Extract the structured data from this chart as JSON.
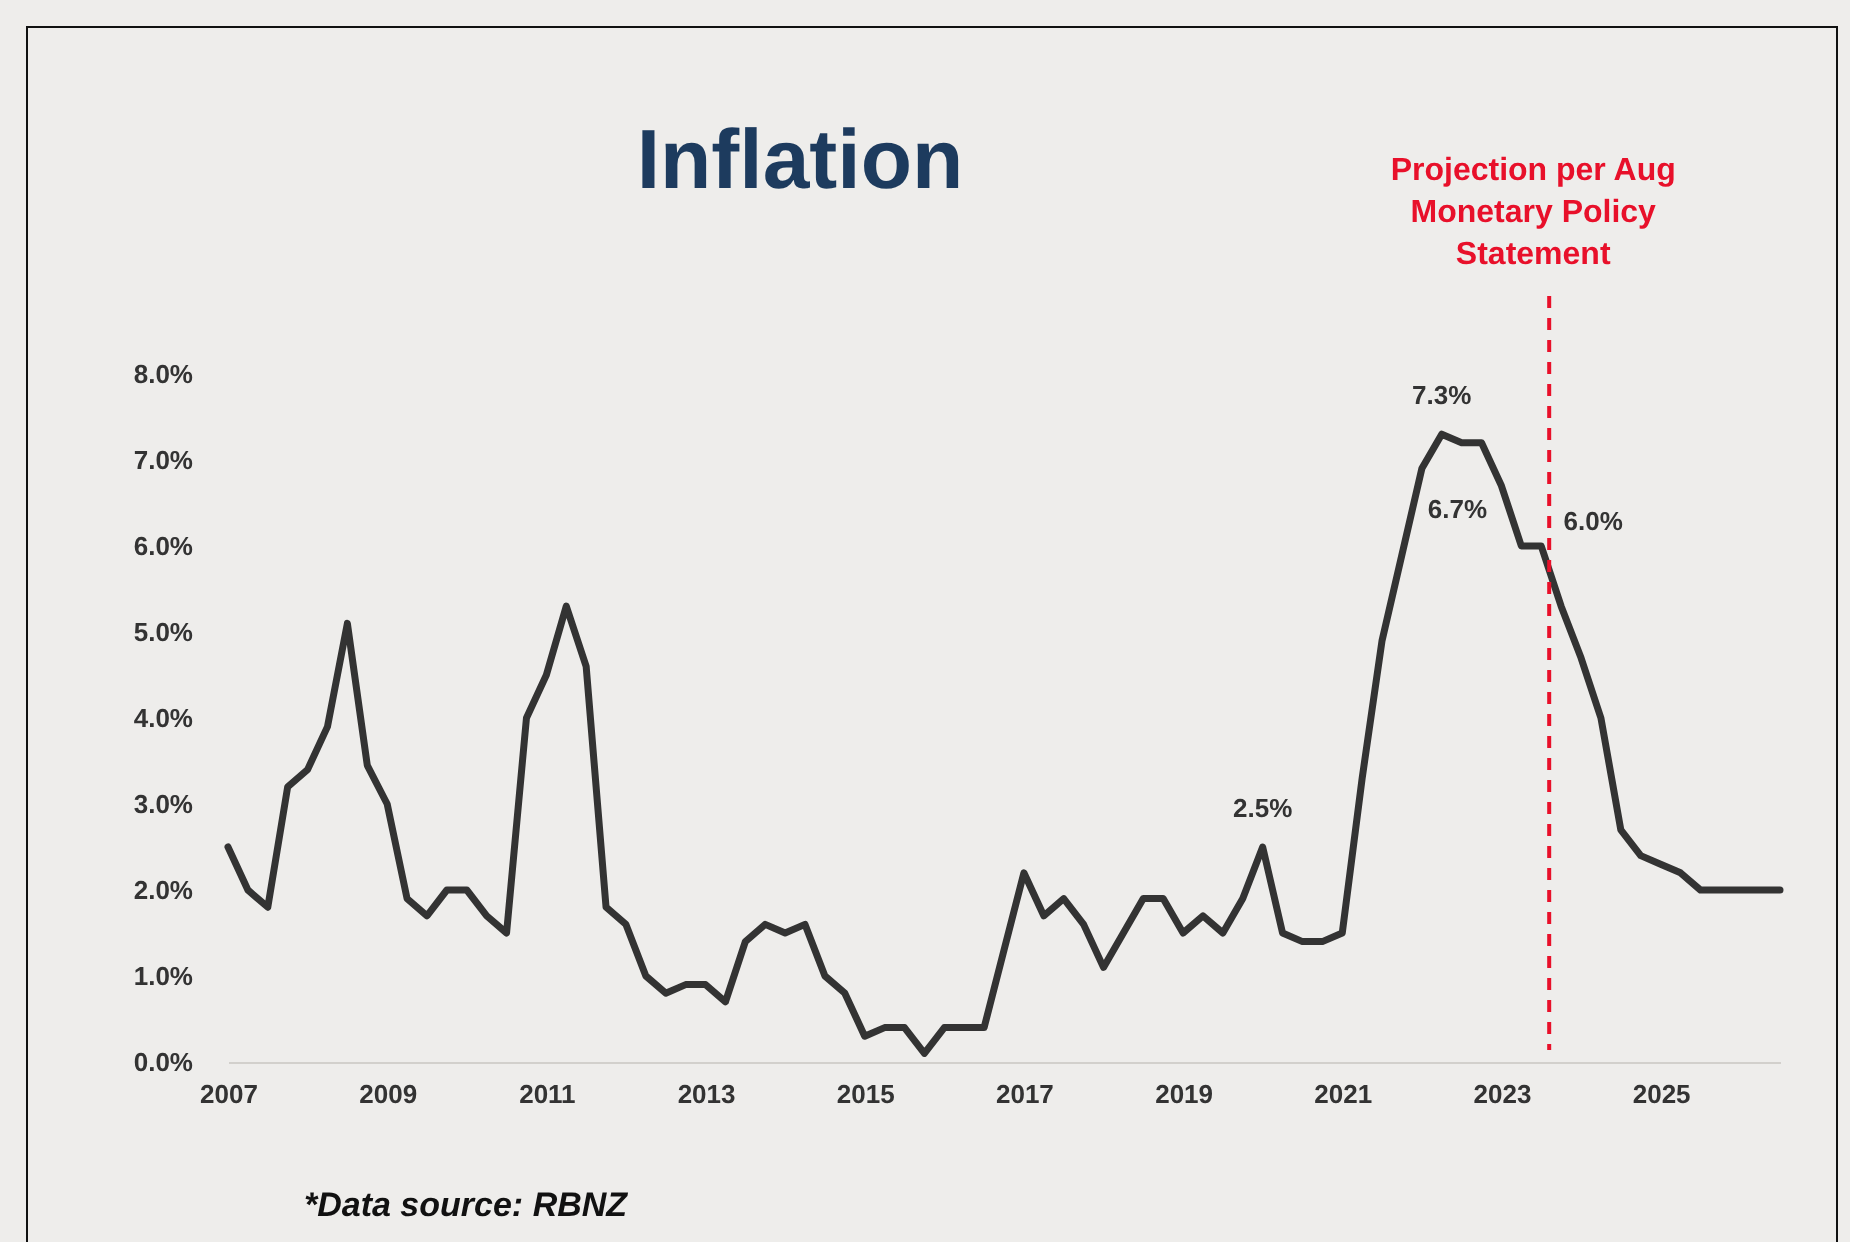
{
  "chart_data": {
    "type": "line",
    "title": "Inflation",
    "x": [
      2007.0,
      2007.25,
      2007.5,
      2007.75,
      2008.0,
      2008.25,
      2008.5,
      2008.75,
      2009.0,
      2009.25,
      2009.5,
      2009.75,
      2010.0,
      2010.25,
      2010.5,
      2010.75,
      2011.0,
      2011.25,
      2011.5,
      2011.75,
      2012.0,
      2012.25,
      2012.5,
      2012.75,
      2013.0,
      2013.25,
      2013.5,
      2013.75,
      2014.0,
      2014.25,
      2014.5,
      2014.75,
      2015.0,
      2015.25,
      2015.5,
      2015.75,
      2016.0,
      2016.25,
      2016.5,
      2016.75,
      2017.0,
      2017.25,
      2017.5,
      2017.75,
      2018.0,
      2018.25,
      2018.5,
      2018.75,
      2019.0,
      2019.25,
      2019.5,
      2019.75,
      2020.0,
      2020.25,
      2020.5,
      2020.75,
      2021.0,
      2021.25,
      2021.5,
      2021.75,
      2022.0,
      2022.25,
      2022.5,
      2022.75,
      2023.0,
      2023.25,
      2023.5,
      2023.75,
      2024.0,
      2024.25,
      2024.5,
      2024.75,
      2025.0,
      2025.25,
      2025.5,
      2025.75,
      2026.0,
      2026.25,
      2026.5
    ],
    "series": [
      {
        "color": "#333333",
        "values": [
          2.5,
          2.0,
          1.8,
          3.2,
          3.4,
          3.9,
          5.1,
          3.45,
          3.0,
          1.9,
          1.7,
          2.0,
          2.0,
          1.7,
          1.5,
          4.0,
          4.5,
          5.3,
          4.6,
          1.8,
          1.6,
          1.0,
          0.8,
          0.9,
          0.9,
          0.7,
          1.4,
          1.6,
          1.5,
          1.6,
          1.0,
          0.8,
          0.3,
          0.4,
          0.4,
          0.1,
          0.4,
          0.4,
          0.4,
          1.3,
          2.2,
          1.7,
          1.9,
          1.6,
          1.1,
          1.5,
          1.9,
          1.9,
          1.5,
          1.7,
          1.5,
          1.9,
          2.5,
          1.5,
          1.4,
          1.4,
          1.5,
          3.3,
          4.9,
          5.9,
          6.9,
          7.3,
          7.2,
          7.2,
          6.7,
          6.0,
          6.0,
          5.3,
          4.7,
          4.0,
          2.7,
          2.4,
          2.3,
          2.2,
          2.0,
          2.0,
          2.0,
          2.0,
          2.0
        ]
      }
    ],
    "xlim": [
      2007,
      2026.5
    ],
    "xticks": [
      2007,
      2009,
      2011,
      2013,
      2015,
      2017,
      2019,
      2021,
      2023,
      2025
    ],
    "ylim": [
      0,
      8
    ],
    "yticks": [
      {
        "value": 0,
        "label": "0.0%"
      },
      {
        "value": 1,
        "label": "1.0%"
      },
      {
        "value": 2,
        "label": "2.0%"
      },
      {
        "value": 3,
        "label": "3.0%"
      },
      {
        "value": 4,
        "label": "4.0%"
      },
      {
        "value": 5,
        "label": "5.0%"
      },
      {
        "value": 6,
        "label": "6.0%"
      },
      {
        "value": 7,
        "label": "7.0%"
      },
      {
        "value": 8,
        "label": "8.0%"
      }
    ],
    "ref_lines": [
      {
        "axis": "x",
        "value": 2023.6,
        "label": "Projection per Aug\nMonetary Policy\nStatement",
        "color": "#e8102a",
        "line_style": "dashed"
      }
    ],
    "annotations": [
      {
        "text": "7.3%",
        "x": 2022.25,
        "y": 7.3
      },
      {
        "text": "6.7%",
        "x": 2023.0,
        "y": 6.7
      },
      {
        "text": "6.0%",
        "x": 2023.5,
        "y": 6.0
      },
      {
        "text": "2.5%",
        "x": 2020.0,
        "y": 2.5
      },
      "*Data source: RBNZ"
    ],
    "grid": false,
    "marker": "none",
    "line_style": "solid"
  }
}
